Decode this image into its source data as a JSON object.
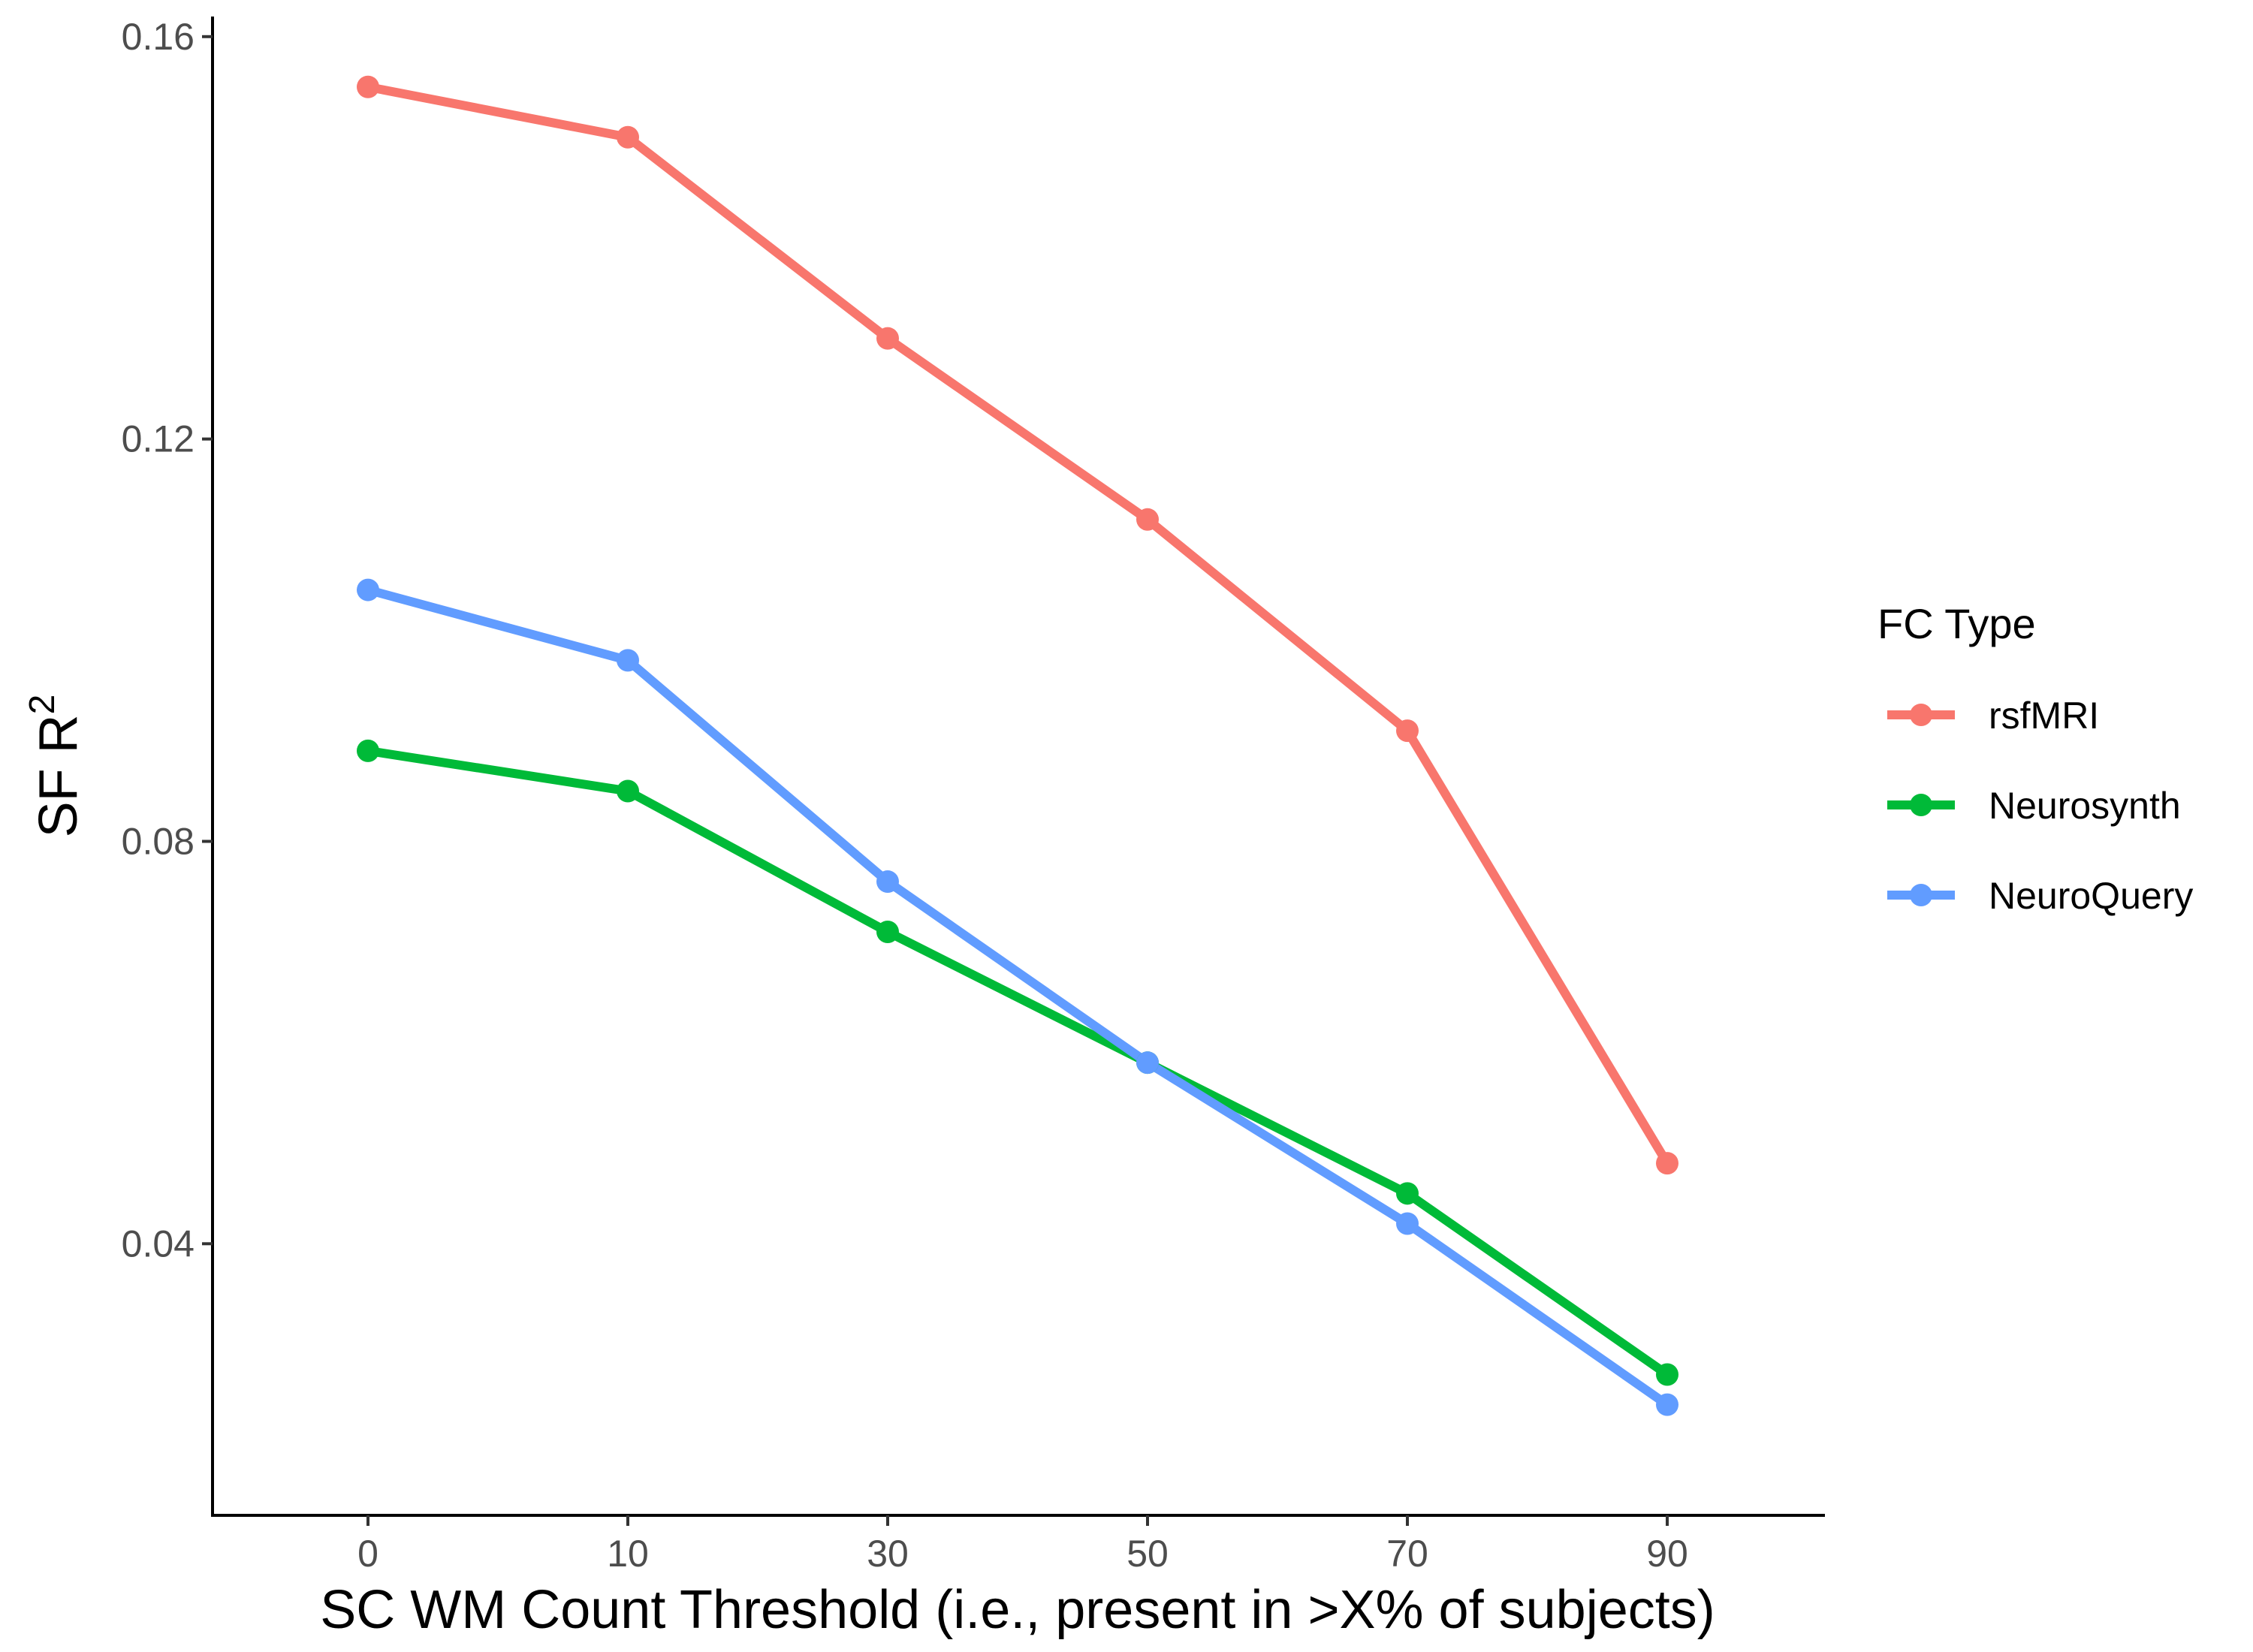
{
  "chart_data": {
    "type": "line",
    "x": [
      0,
      10,
      30,
      50,
      70,
      90
    ],
    "x_tick_labels": [
      "0",
      "10",
      "30",
      "50",
      "70",
      "90"
    ],
    "xlabel": "SC WM Count Threshold (i.e., present in >X% of subjects)",
    "ylabel_main": "SF R",
    "ylabel_superscript": "2",
    "y_ticks": [
      0.04,
      0.08,
      0.12,
      0.16
    ],
    "y_tick_labels": [
      "0.04",
      "0.08",
      "0.12",
      "0.16"
    ],
    "ylim": [
      0.013,
      0.162
    ],
    "grid": false,
    "legend": {
      "title": "FC Type",
      "position": "right"
    },
    "series": [
      {
        "name": "rsfMRI",
        "color": "#F8766D",
        "values": [
          0.155,
          0.15,
          0.13,
          0.112,
          0.091,
          0.048
        ]
      },
      {
        "name": "Neurosynth",
        "color": "#00BA38",
        "values": [
          0.089,
          0.085,
          0.071,
          0.058,
          0.045,
          0.027
        ]
      },
      {
        "name": "NeuroQuery",
        "color": "#619CFF",
        "values": [
          0.105,
          0.098,
          0.076,
          0.058,
          0.042,
          0.024
        ]
      }
    ]
  }
}
